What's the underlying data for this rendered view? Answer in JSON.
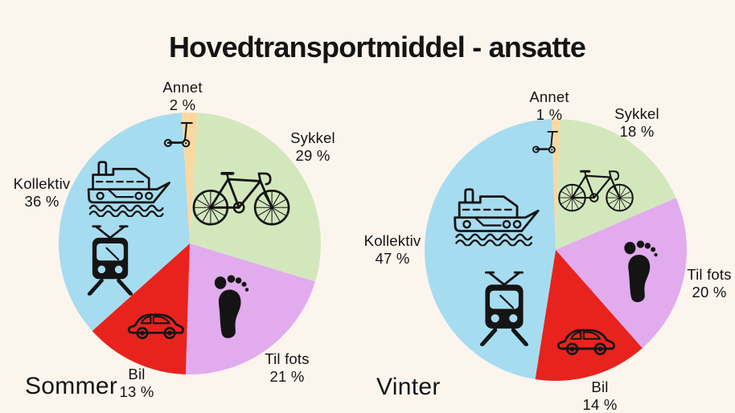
{
  "title": "Hovedtransportmiddel - ansatte",
  "background_color": "#fcf5ed",
  "text_color": "#141414",
  "icon_color": "#141414",
  "chart_data": [
    {
      "type": "pie",
      "title": "Sommer",
      "categories": [
        "Annet",
        "Sykkel",
        "Til fots",
        "Bil",
        "Kollektiv"
      ],
      "values": [
        2,
        29,
        21,
        13,
        36
      ],
      "pct_labels": [
        "2 %",
        "29 %",
        "21 %",
        "13 %",
        "36 %"
      ],
      "unit": "%",
      "colors": [
        "#f9d9a2",
        "#d3e7bd",
        "#e2abee",
        "#e8231d",
        "#a6dcf0"
      ],
      "icons": [
        "kick-scooter",
        "bicycle",
        "footprint",
        "car",
        "ferry-and-tram"
      ],
      "order": "clockwise-from-top-starting-with-annet",
      "legend": "none"
    },
    {
      "type": "pie",
      "title": "Vinter",
      "categories": [
        "Annet",
        "Sykkel",
        "Til fots",
        "Bil",
        "Kollektiv"
      ],
      "values": [
        1,
        18,
        20,
        14,
        47
      ],
      "pct_labels": [
        "1 %",
        "18 %",
        "20 %",
        "14 %",
        "47 %"
      ],
      "unit": "%",
      "colors": [
        "#f9d9a2",
        "#d3e7bd",
        "#e2abee",
        "#e8231d",
        "#a6dcf0"
      ],
      "icons": [
        "kick-scooter",
        "bicycle",
        "footprint",
        "car",
        "ferry-and-tram"
      ],
      "order": "clockwise-from-top-starting-with-annet",
      "legend": "none"
    }
  ]
}
